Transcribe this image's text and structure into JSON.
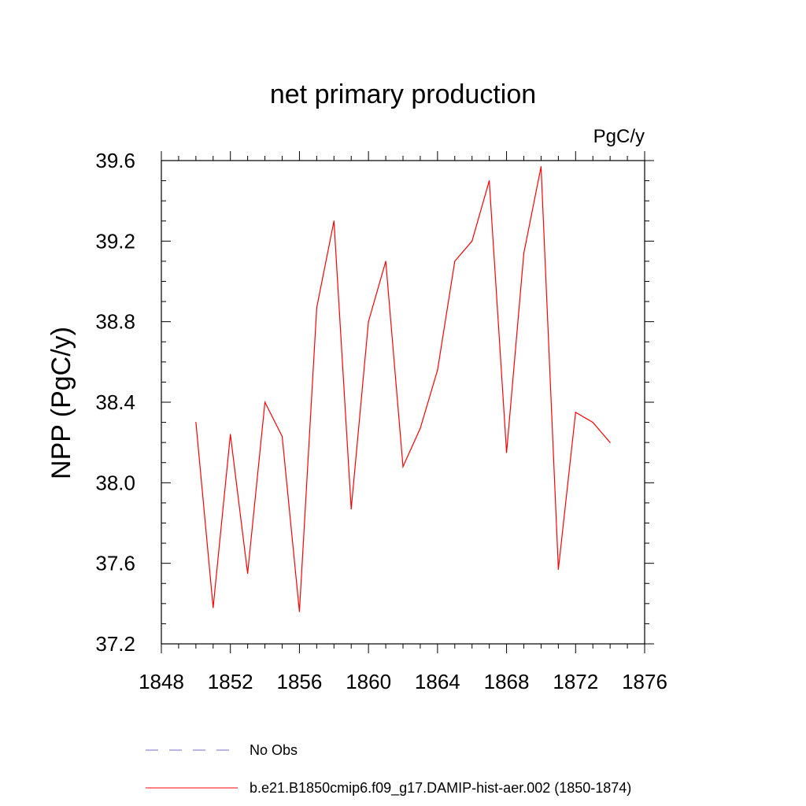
{
  "chart_data": {
    "type": "line",
    "title": "net primary production",
    "units_label": "PgC/y",
    "ylabel": "NPP  (PgC/y)",
    "xlabel": "",
    "xlim": [
      1848,
      1876
    ],
    "ylim": [
      37.2,
      39.6
    ],
    "x_ticks": [
      "1848",
      "1852",
      "1856",
      "1860",
      "1864",
      "1868",
      "1872",
      "1876"
    ],
    "y_ticks": [
      "37.2",
      "37.6",
      "38.0",
      "38.4",
      "38.8",
      "39.2",
      "39.6"
    ],
    "grid": false,
    "legend_position": "bottom",
    "series": [
      {
        "name": "b.e21.B1850cmip6.f09_g17.DAMIP-hist-aer.002 (1850-1874)",
        "color": "#ff0000",
        "style": "solid",
        "x": [
          1850,
          1851,
          1852,
          1853,
          1854,
          1855,
          1856,
          1857,
          1858,
          1859,
          1860,
          1861,
          1862,
          1863,
          1864,
          1865,
          1866,
          1867,
          1868,
          1869,
          1870,
          1871,
          1872,
          1873,
          1874
        ],
        "y": [
          38.3,
          37.38,
          38.24,
          37.55,
          38.4,
          38.23,
          37.36,
          38.87,
          39.3,
          37.87,
          38.8,
          39.1,
          38.08,
          38.27,
          38.56,
          39.1,
          39.2,
          39.5,
          38.15,
          39.14,
          39.57,
          37.57,
          38.35,
          38.3,
          38.2
        ]
      }
    ],
    "legend": [
      {
        "label": "No Obs",
        "color": "#7b68c8",
        "style": "dashed"
      },
      {
        "label": "b.e21.B1850cmip6.f09_g17.DAMIP-hist-aer.002 (1850-1874)",
        "color": "#ff0000",
        "style": "solid"
      }
    ]
  }
}
